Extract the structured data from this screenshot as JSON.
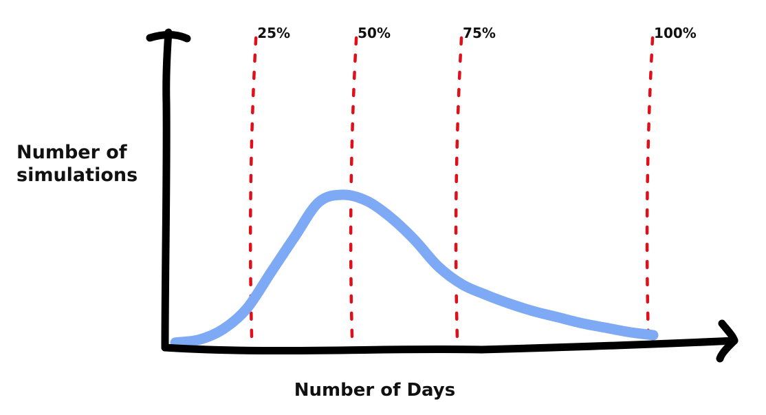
{
  "chart_data": {
    "type": "line",
    "title": "",
    "xlabel": "Number of Days",
    "ylabel_lines": [
      "Number of",
      "simulations"
    ],
    "percentile_markers": [
      {
        "label": "25%",
        "x": 0.16
      },
      {
        "label": "50%",
        "x": 0.37
      },
      {
        "label": "75%",
        "x": 0.59
      },
      {
        "label": "100%",
        "x": 0.99
      }
    ],
    "series": [
      {
        "color": "#7ea9f4",
        "x": [
          0.0,
          0.05,
          0.1,
          0.15,
          0.2,
          0.25,
          0.3,
          0.35,
          0.4,
          0.45,
          0.5,
          0.55,
          0.6,
          0.65,
          0.7,
          0.75,
          0.8,
          0.85,
          0.9,
          0.95,
          1.0
        ],
        "y": [
          0.01,
          0.03,
          0.1,
          0.24,
          0.48,
          0.72,
          0.95,
          1.0,
          0.96,
          0.85,
          0.7,
          0.52,
          0.4,
          0.33,
          0.27,
          0.22,
          0.18,
          0.14,
          0.11,
          0.08,
          0.06
        ]
      }
    ],
    "xlim": [
      0,
      1.0
    ],
    "ylim": [
      0,
      1.0
    ],
    "axis_color": "#000000",
    "marker_color": "#e0101a",
    "grid": false,
    "legend": "none"
  }
}
